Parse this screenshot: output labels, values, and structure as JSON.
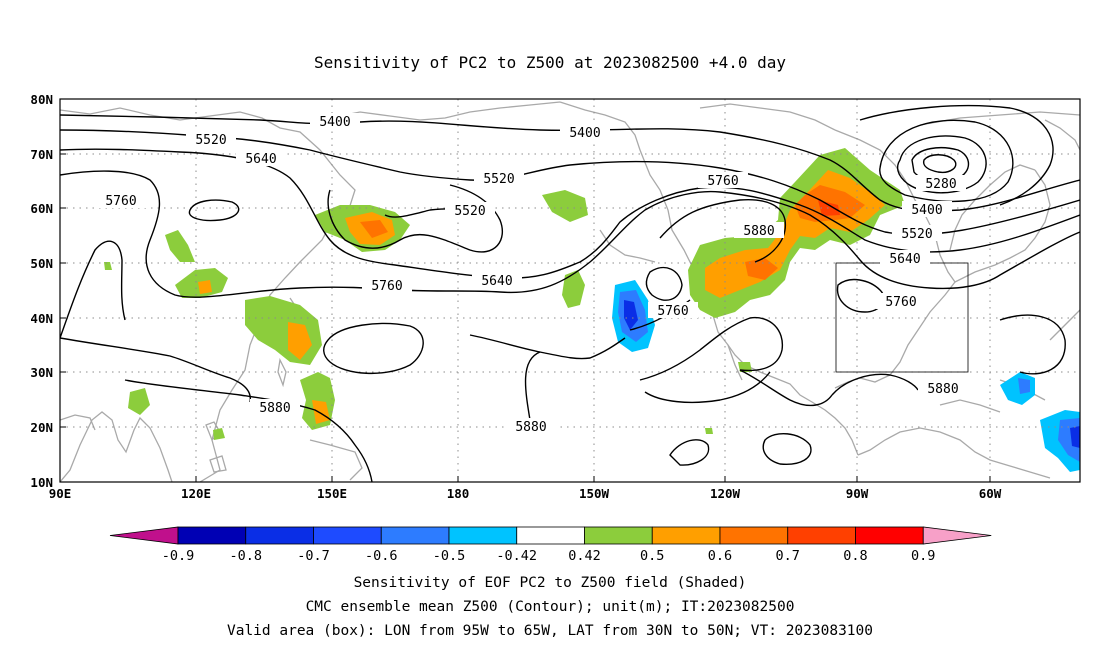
{
  "title": "Sensitivity of PC2 to Z500 at 2023082500 +4.0 day",
  "lat_ticks": [
    "80N",
    "70N",
    "60N",
    "50N",
    "40N",
    "30N",
    "20N",
    "10N"
  ],
  "lon_ticks": [
    "90E",
    "120E",
    "150E",
    "180",
    "150W",
    "120W",
    "90W",
    "60W"
  ],
  "contour_labels": [
    {
      "text": "5400"
    },
    {
      "text": "5400"
    },
    {
      "text": "5520"
    },
    {
      "text": "5640"
    },
    {
      "text": "5760"
    },
    {
      "text": "5520"
    },
    {
      "text": "5520"
    },
    {
      "text": "5760"
    },
    {
      "text": "5640"
    },
    {
      "text": "5760"
    },
    {
      "text": "5760"
    },
    {
      "text": "5880"
    },
    {
      "text": "5280"
    },
    {
      "text": "5400"
    },
    {
      "text": "5520"
    },
    {
      "text": "5640"
    },
    {
      "text": "5760"
    },
    {
      "text": "5880"
    },
    {
      "text": "5880"
    },
    {
      "text": "5880"
    }
  ],
  "colorbar": {
    "colors": [
      "#c0108c",
      "#0000b4",
      "#0a2ee6",
      "#1e4bff",
      "#2d7cff",
      "#00c3ff",
      "#ffffff",
      "#8ccd3c",
      "#ff9f00",
      "#ff7300",
      "#ff4000",
      "#ff0000",
      "#f7a0c8"
    ],
    "labels": [
      "-0.9",
      "-0.8",
      "-0.7",
      "-0.6",
      "-0.5",
      "-0.42",
      "0.42",
      "0.5",
      "0.6",
      "0.7",
      "0.8",
      "0.9"
    ]
  },
  "valid_box": {
    "lon_west": -95,
    "lon_east": -65,
    "lat_south": 30,
    "lat_north": 50
  },
  "caption": {
    "line1": "Sensitivity of EOF PC2 to Z500 field (Shaded)",
    "line2": "CMC ensemble mean Z500 (Contour); unit(m); IT:2023082500",
    "line3": "Valid area (box): LON from 95W to 65W, LAT from 30N to 50N; VT: 2023083100"
  }
}
